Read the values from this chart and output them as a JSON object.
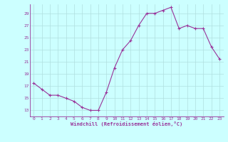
{
  "x": [
    0,
    1,
    2,
    3,
    4,
    5,
    6,
    7,
    8,
    9,
    10,
    11,
    12,
    13,
    14,
    15,
    16,
    17,
    18,
    19,
    20,
    21,
    22,
    23
  ],
  "y": [
    17.5,
    16.5,
    15.5,
    15.5,
    15.0,
    14.5,
    13.5,
    13.0,
    13.0,
    16.0,
    20.0,
    23.0,
    24.5,
    27.0,
    29.0,
    29.0,
    29.5,
    30.0,
    26.5,
    27.0,
    26.5,
    26.5,
    23.5,
    21.5
  ],
  "xticks": [
    0,
    1,
    2,
    3,
    4,
    5,
    6,
    7,
    8,
    9,
    10,
    11,
    12,
    13,
    14,
    15,
    16,
    17,
    18,
    19,
    20,
    21,
    22,
    23
  ],
  "yticks": [
    13,
    15,
    17,
    19,
    21,
    23,
    25,
    27,
    29
  ],
  "ylim": [
    12.0,
    30.5
  ],
  "xlim": [
    -0.5,
    23.5
  ],
  "xlabel": "Windchill (Refroidissement éolien,°C)",
  "line_color": "#993399",
  "marker_color": "#993399",
  "bg_color": "#ccffff",
  "grid_color": "#b0dede",
  "tick_color": "#993399",
  "label_color": "#993399",
  "spine_color": "#993399"
}
